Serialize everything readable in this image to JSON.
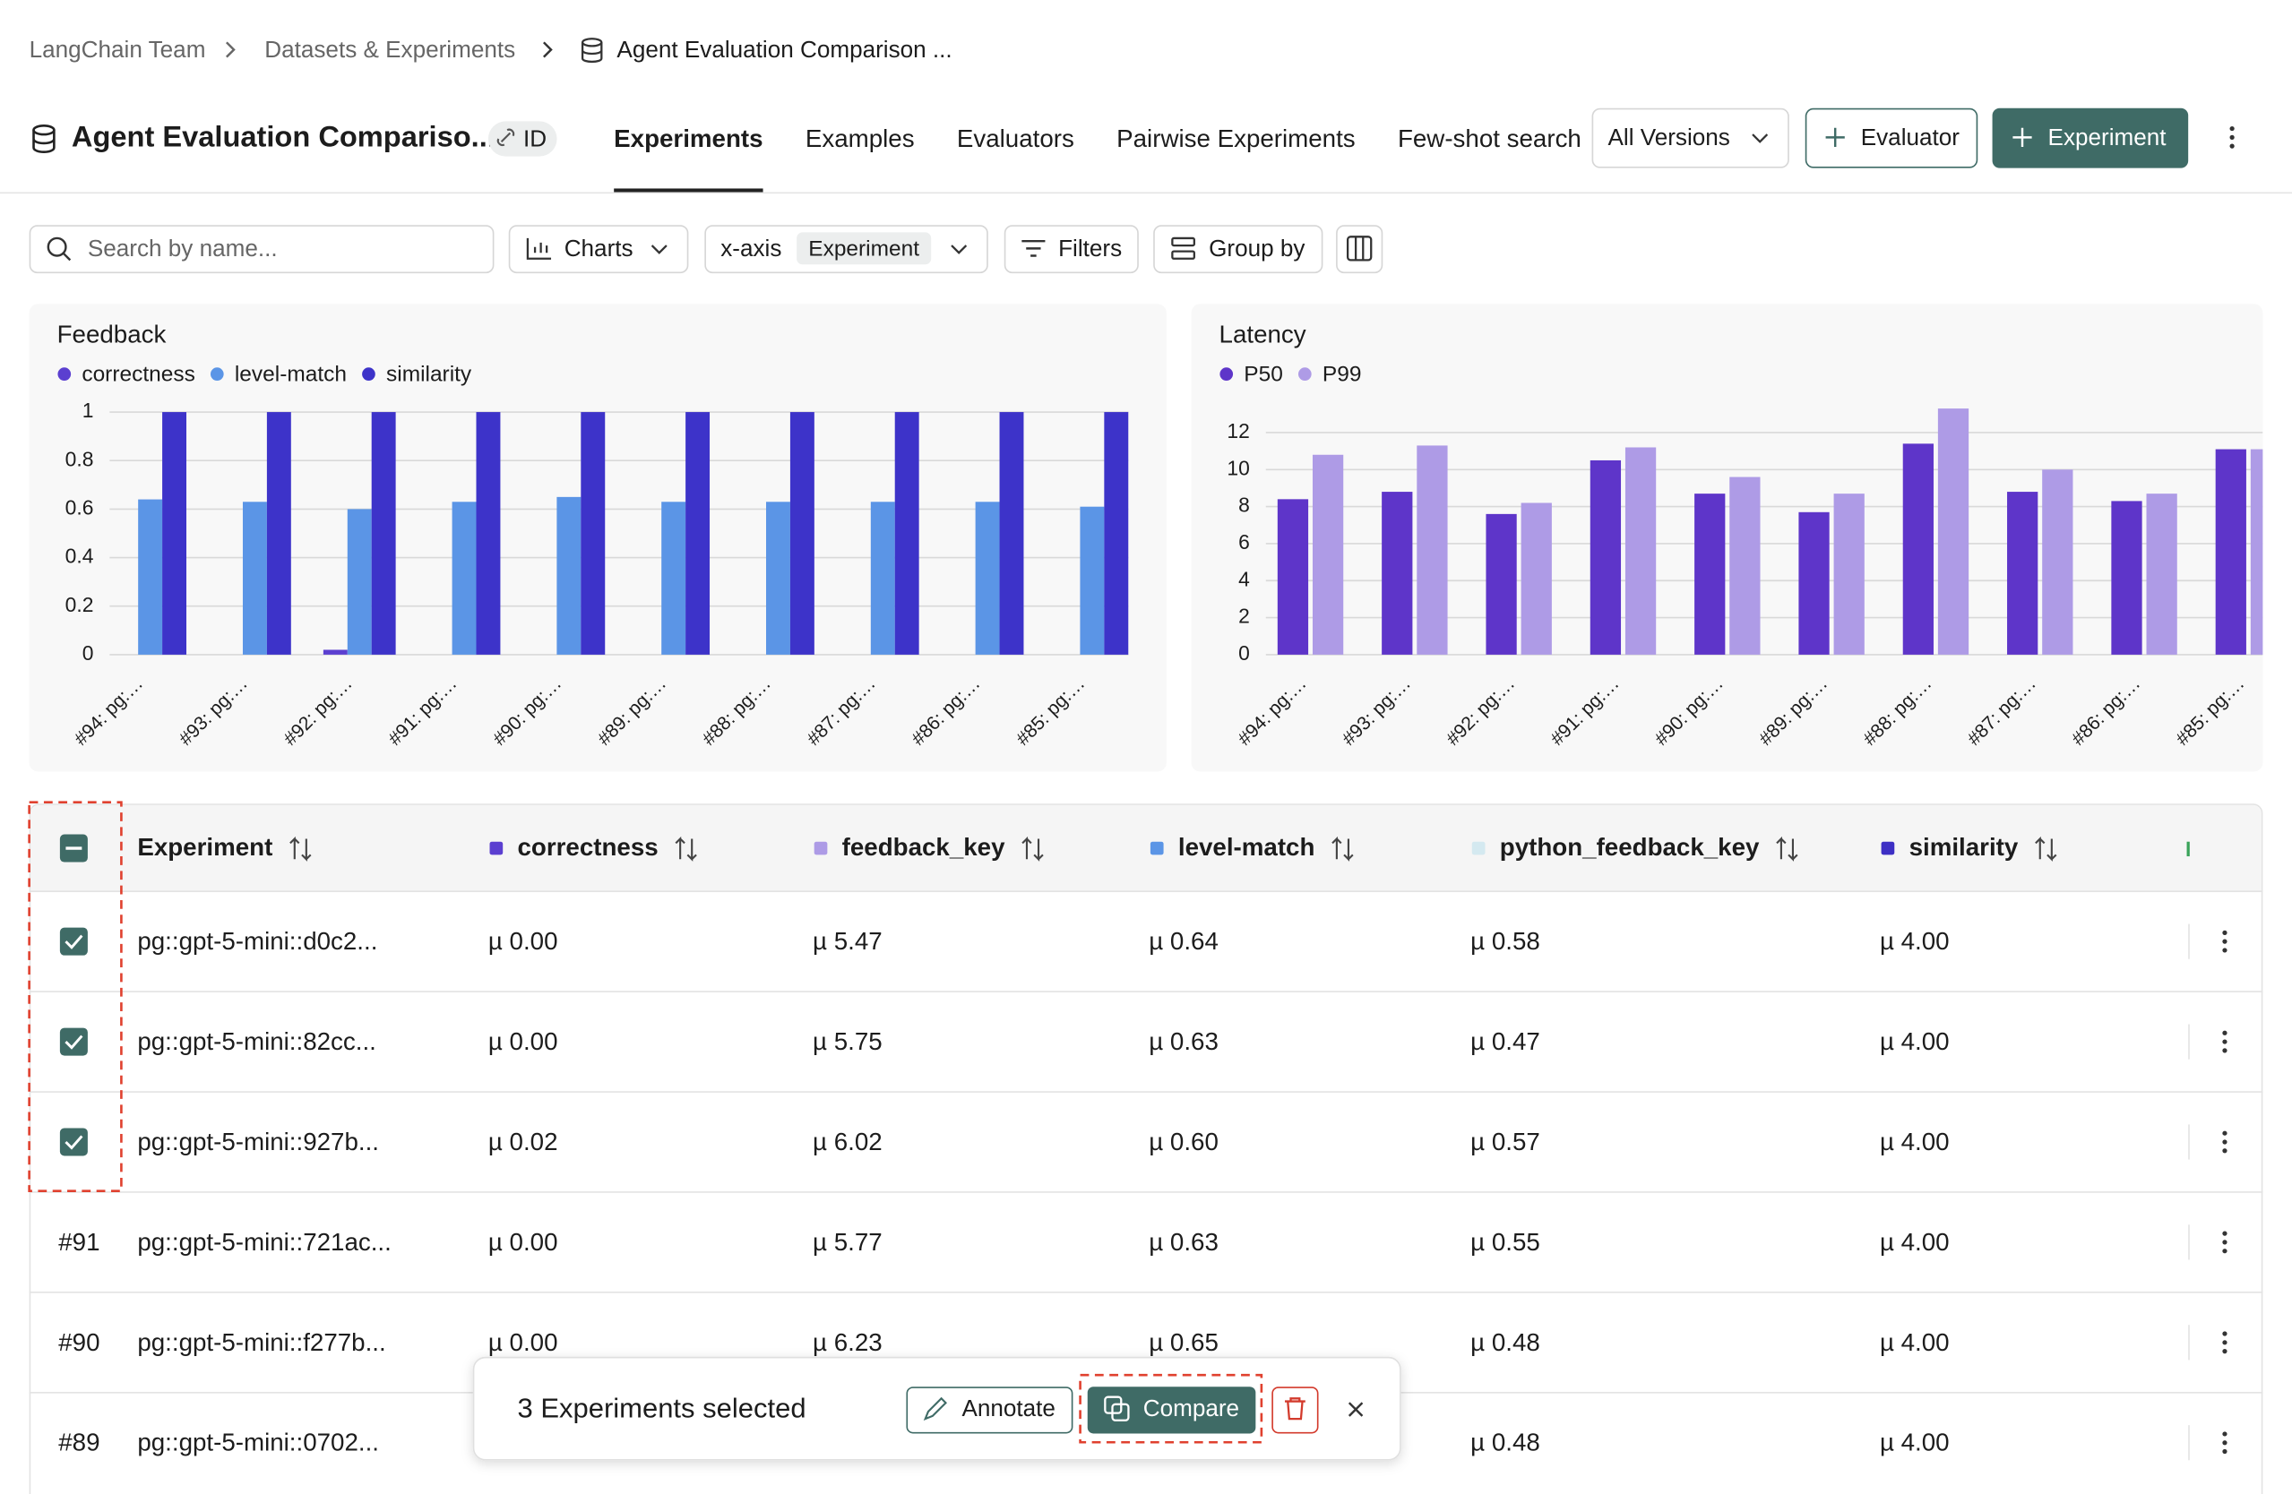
{
  "breadcrumbs": [
    "LangChain Team",
    "Datasets & Experiments",
    "Agent Evaluation Comparison ..."
  ],
  "header": {
    "title": "Agent Evaluation Compariso...",
    "id_badge": "ID",
    "tabs": [
      "Experiments",
      "Examples",
      "Evaluators",
      "Pairwise Experiments",
      "Few-shot search"
    ],
    "active_tab": 0,
    "version_select": "All Versions",
    "add_evaluator": "Evaluator",
    "add_experiment": "Experiment"
  },
  "toolbar": {
    "search_placeholder": "Search by name...",
    "charts": "Charts",
    "x_axis_label": "x-axis",
    "x_axis_value": "Experiment",
    "filters": "Filters",
    "group_by": "Group by"
  },
  "chart_data": [
    {
      "type": "bar",
      "title": "Feedback",
      "categories": [
        "#94: pg:…",
        "#93: pg:…",
        "#92: pg:…",
        "#91: pg:…",
        "#90: pg:…",
        "#89: pg:…",
        "#88: pg:…",
        "#87: pg:…",
        "#86: pg:…",
        "#85: pg:…"
      ],
      "series": [
        {
          "name": "correctness",
          "color": "#5b3fd0",
          "values": [
            0,
            0,
            0.02,
            0,
            0,
            0,
            0,
            0,
            0,
            0
          ]
        },
        {
          "name": "level-match",
          "color": "#5b95e6",
          "values": [
            0.64,
            0.63,
            0.6,
            0.63,
            0.65,
            0.63,
            0.63,
            0.63,
            0.63,
            0.61
          ]
        },
        {
          "name": "similarity",
          "color": "#3d33c9",
          "values": [
            1,
            1,
            1,
            1,
            1,
            1,
            1,
            1,
            1,
            1
          ]
        }
      ],
      "ylim": [
        0,
        1
      ],
      "yticks": [
        0,
        0.2,
        0.4,
        0.6,
        0.8,
        1
      ],
      "grid": true
    },
    {
      "type": "bar",
      "title": "Latency",
      "categories": [
        "#94: pg:…",
        "#93: pg:…",
        "#92: pg:…",
        "#91: pg:…",
        "#90: pg:…",
        "#89: pg:…",
        "#88: pg:…",
        "#87: pg:…",
        "#86: pg:…",
        "#85: pg:…"
      ],
      "series": [
        {
          "name": "P50",
          "color": "#5e35c9",
          "values": [
            8.4,
            8.8,
            7.6,
            10.5,
            8.7,
            7.7,
            11.4,
            8.8,
            8.3,
            11.1
          ]
        },
        {
          "name": "P99",
          "color": "#ae9be6",
          "values": [
            10.8,
            11.3,
            8.2,
            11.2,
            9.6,
            8.7,
            13.3,
            10.0,
            8.7,
            11.1
          ]
        }
      ],
      "ylim": [
        0,
        13.4
      ],
      "yticks": [
        0,
        2,
        4,
        6,
        8,
        10,
        12
      ],
      "grid": true
    }
  ],
  "table": {
    "columns": [
      {
        "name": "Experiment"
      },
      {
        "name": "correctness",
        "color": "#5b3fd0"
      },
      {
        "name": "feedback_key",
        "color": "#ad9be6"
      },
      {
        "name": "level-match",
        "color": "#5b95e6"
      },
      {
        "name": "python_feedback_key",
        "color": "#d4e9f0"
      },
      {
        "name": "similarity",
        "color": "#3d2fc4"
      }
    ],
    "rows": [
      {
        "selected": true,
        "cells": [
          "pg::gpt-5-mini::d0c2...",
          "µ 0.00",
          "µ 5.47",
          "µ 0.64",
          "µ 0.58",
          "µ 4.00"
        ]
      },
      {
        "selected": true,
        "cells": [
          "pg::gpt-5-mini::82cc...",
          "µ 0.00",
          "µ 5.75",
          "µ 0.63",
          "µ 0.47",
          "µ 4.00"
        ]
      },
      {
        "selected": true,
        "cells": [
          "pg::gpt-5-mini::927b...",
          "µ 0.02",
          "µ 6.02",
          "µ 0.60",
          "µ 0.57",
          "µ 4.00"
        ]
      },
      {
        "id": "#91",
        "selected": false,
        "cells": [
          "pg::gpt-5-mini::721ac...",
          "µ 0.00",
          "µ 5.77",
          "µ 0.63",
          "µ 0.55",
          "µ 4.00"
        ]
      },
      {
        "id": "#90",
        "selected": false,
        "cells": [
          "pg::gpt-5-mini::f277b...",
          "µ 0.00",
          "µ 6.23",
          "µ 0.65",
          "µ 0.48",
          "µ 4.00"
        ]
      },
      {
        "id": "#89",
        "selected": false,
        "cells": [
          "pg::gpt-5-mini::0702...",
          null,
          null,
          null,
          "µ 0.48",
          "µ 4.00"
        ]
      }
    ]
  },
  "selection_bar": {
    "text": "3 Experiments selected",
    "annotate": "Annotate",
    "compare": "Compare"
  }
}
